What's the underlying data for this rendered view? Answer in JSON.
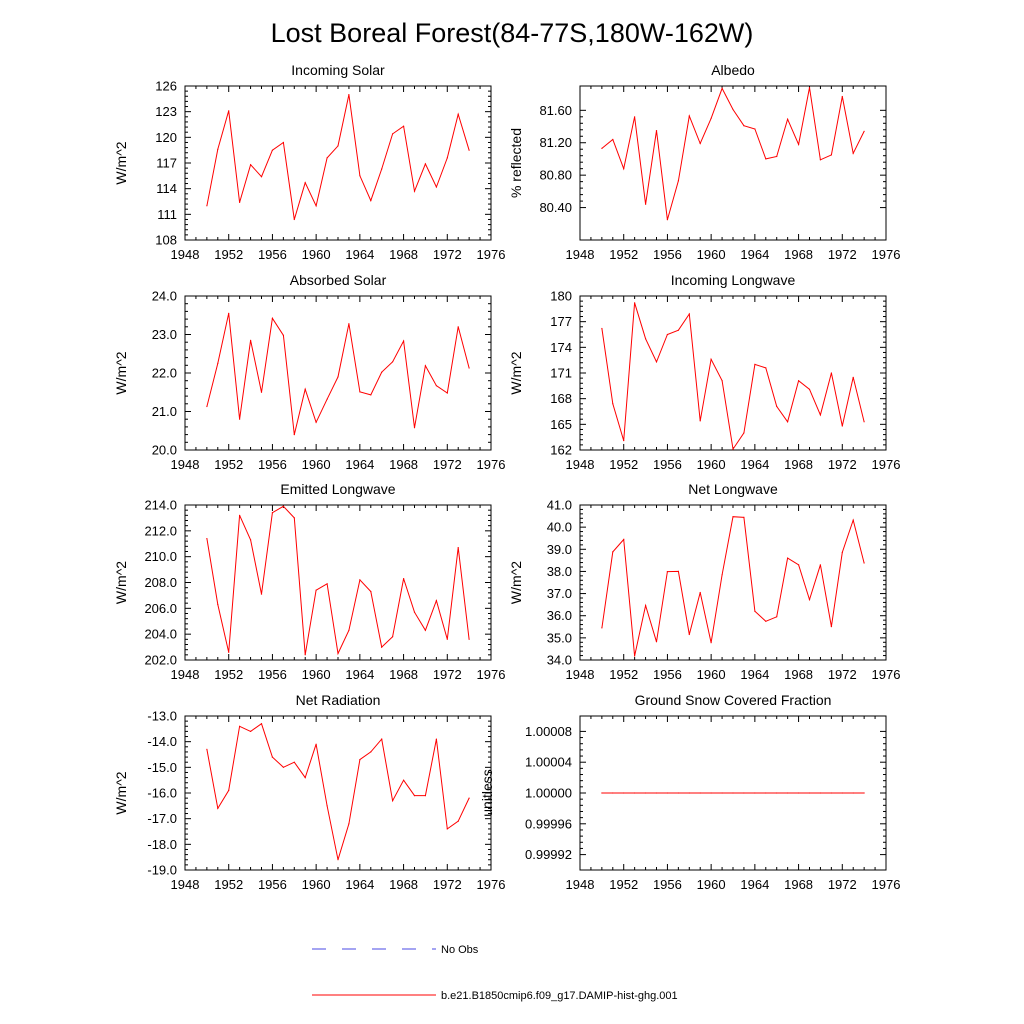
{
  "figure": {
    "title": "Lost Boreal Forest(84-77S,180W-162W)"
  },
  "colors": {
    "model": "#ff0000",
    "obs": "#4a4ae6",
    "axis": "#000000"
  },
  "legend": {
    "obs_label": "No Obs",
    "model_label": "b.e21.B1850cmip6.f09_g17.DAMIP-hist-ghg.001"
  },
  "chart_data": [
    {
      "type": "line",
      "title": "Incoming Solar",
      "ylabel": "W/m^2",
      "xlim": [
        1948,
        1976
      ],
      "xticks": [
        1948,
        1952,
        1956,
        1960,
        1964,
        1968,
        1972,
        1976
      ],
      "ylim": [
        108,
        126
      ],
      "yticks": [
        "108",
        "111",
        "114",
        "117",
        "120",
        "123",
        "126"
      ],
      "x": [
        1950,
        1951,
        1952,
        1953,
        1954,
        1955,
        1956,
        1957,
        1958,
        1959,
        1960,
        1961,
        1962,
        1963,
        1964,
        1965,
        1966,
        1967,
        1968,
        1969,
        1970,
        1971,
        1972,
        1973,
        1974
      ],
      "series": [
        {
          "values": [
            112,
            118.6,
            123.1,
            112.4,
            116.8,
            115.4,
            118.5,
            119.4,
            110.4,
            114.7,
            112,
            117.6,
            119,
            125,
            115.5,
            112.6,
            116.3,
            120.4,
            121.3,
            113.7,
            116.9,
            114.2,
            117.6,
            122.7,
            118.5
          ]
        }
      ]
    },
    {
      "type": "line",
      "title": "Albedo",
      "ylabel": "% reflected",
      "xlim": [
        1948,
        1976
      ],
      "xticks": [
        1948,
        1952,
        1956,
        1960,
        1964,
        1968,
        1972,
        1976
      ],
      "ylim": [
        80.0,
        81.9
      ],
      "yticks": [
        "80.40",
        "80.80",
        "81.20",
        "81.60"
      ],
      "ytick_values": [
        80.4,
        80.8,
        81.2,
        81.6
      ],
      "x": [
        1950,
        1951,
        1952,
        1953,
        1954,
        1955,
        1956,
        1957,
        1958,
        1959,
        1960,
        1961,
        1962,
        1963,
        1964,
        1965,
        1966,
        1967,
        1968,
        1969,
        1970,
        1971,
        1972,
        1973,
        1974
      ],
      "series": [
        {
          "values": [
            81.13,
            81.24,
            80.88,
            81.52,
            80.44,
            81.35,
            80.25,
            80.73,
            81.53,
            81.19,
            81.5,
            81.87,
            81.61,
            81.41,
            81.37,
            81.0,
            81.03,
            81.49,
            81.18,
            81.88,
            80.99,
            81.05,
            81.77,
            81.07,
            81.34
          ]
        }
      ]
    },
    {
      "type": "line",
      "title": "Absorbed Solar",
      "ylabel": "W/m^2",
      "xlim": [
        1948,
        1976
      ],
      "xticks": [
        1948,
        1952,
        1956,
        1960,
        1964,
        1968,
        1972,
        1976
      ],
      "ylim": [
        20.0,
        24.0
      ],
      "yticks": [
        "20.0",
        "21.0",
        "22.0",
        "23.0",
        "24.0"
      ],
      "x": [
        1950,
        1951,
        1952,
        1953,
        1954,
        1955,
        1956,
        1957,
        1958,
        1959,
        1960,
        1961,
        1962,
        1963,
        1964,
        1965,
        1966,
        1967,
        1968,
        1969,
        1970,
        1971,
        1972,
        1973,
        1974
      ],
      "series": [
        {
          "values": [
            21.13,
            22.25,
            23.55,
            20.8,
            22.85,
            21.5,
            23.42,
            22.98,
            20.4,
            21.58,
            20.72,
            21.32,
            21.9,
            23.28,
            21.51,
            21.43,
            22.02,
            22.29,
            22.83,
            20.58,
            22.19,
            21.67,
            21.48,
            23.2,
            22.13
          ]
        }
      ]
    },
    {
      "type": "line",
      "title": "Incoming Longwave",
      "ylabel": "W/m^2",
      "xlim": [
        1948,
        1976
      ],
      "xticks": [
        1948,
        1952,
        1956,
        1960,
        1964,
        1968,
        1972,
        1976
      ],
      "ylim": [
        162,
        180
      ],
      "yticks": [
        "162",
        "165",
        "168",
        "171",
        "174",
        "177",
        "180"
      ],
      "x": [
        1950,
        1951,
        1952,
        1953,
        1954,
        1955,
        1956,
        1957,
        1958,
        1959,
        1960,
        1961,
        1962,
        1963,
        1964,
        1965,
        1966,
        1967,
        1968,
        1969,
        1970,
        1971,
        1972,
        1973,
        1974
      ],
      "series": [
        {
          "values": [
            176.2,
            167.4,
            163.1,
            179.2,
            175,
            172.3,
            175.5,
            176,
            177.9,
            165.4,
            172.6,
            170.1,
            162.1,
            164,
            172,
            171.6,
            167.1,
            165.3,
            170.1,
            169.1,
            166.1,
            171,
            164.8,
            170.5,
            165.3
          ]
        }
      ]
    },
    {
      "type": "line",
      "title": "Emitted Longwave",
      "ylabel": "W/m^2",
      "xlim": [
        1948,
        1976
      ],
      "xticks": [
        1948,
        1952,
        1956,
        1960,
        1964,
        1968,
        1972,
        1976
      ],
      "ylim": [
        202.0,
        214.0
      ],
      "yticks": [
        "202.0",
        "204.0",
        "206.0",
        "208.0",
        "210.0",
        "212.0",
        "214.0"
      ],
      "x": [
        1950,
        1951,
        1952,
        1953,
        1954,
        1955,
        1956,
        1957,
        1958,
        1959,
        1960,
        1961,
        1962,
        1963,
        1964,
        1965,
        1966,
        1967,
        1968,
        1969,
        1970,
        1971,
        1972,
        1973,
        1974
      ],
      "series": [
        {
          "values": [
            211.4,
            206.3,
            202.6,
            213.2,
            211.3,
            207.1,
            213.4,
            213.9,
            213,
            202.4,
            207.4,
            207.9,
            202.5,
            204.3,
            208.2,
            207.3,
            203,
            203.8,
            208.3,
            205.7,
            204.3,
            206.6,
            203.6,
            210.7,
            203.6
          ]
        }
      ]
    },
    {
      "type": "line",
      "title": "Net Longwave",
      "ylabel": "W/m^2",
      "xlim": [
        1948,
        1976
      ],
      "xticks": [
        1948,
        1952,
        1956,
        1960,
        1964,
        1968,
        1972,
        1976
      ],
      "ylim": [
        34.0,
        41.0
      ],
      "yticks": [
        "34.0",
        "35.0",
        "36.0",
        "37.0",
        "38.0",
        "39.0",
        "40.0",
        "41.0"
      ],
      "x": [
        1950,
        1951,
        1952,
        1953,
        1954,
        1955,
        1956,
        1957,
        1958,
        1959,
        1960,
        1961,
        1962,
        1963,
        1964,
        1965,
        1966,
        1967,
        1968,
        1969,
        1970,
        1971,
        1972,
        1973,
        1974
      ],
      "series": [
        {
          "values": [
            35.45,
            38.88,
            39.44,
            34.18,
            36.46,
            34.82,
            37.99,
            38,
            35.15,
            37.05,
            34.78,
            37.85,
            40.47,
            40.44,
            36.2,
            35.75,
            35.95,
            38.6,
            38.3,
            36.73,
            38.3,
            35.51,
            38.86,
            40.32,
            38.38
          ]
        }
      ]
    },
    {
      "type": "line",
      "title": "Net Radiation",
      "ylabel": "W/m^2",
      "xlim": [
        1948,
        1976
      ],
      "xticks": [
        1948,
        1952,
        1956,
        1960,
        1964,
        1968,
        1972,
        1976
      ],
      "ylim": [
        -19.0,
        -13.0
      ],
      "yticks": [
        "-19.0",
        "-18.0",
        "-17.0",
        "-16.0",
        "-15.0",
        "-14.0",
        "-13.0"
      ],
      "x": [
        1950,
        1951,
        1952,
        1953,
        1954,
        1955,
        1956,
        1957,
        1958,
        1959,
        1960,
        1961,
        1962,
        1963,
        1964,
        1965,
        1966,
        1967,
        1968,
        1969,
        1970,
        1971,
        1972,
        1973,
        1974
      ],
      "series": [
        {
          "values": [
            -14.3,
            -16.6,
            -15.9,
            -13.4,
            -13.6,
            -13.3,
            -14.6,
            -15,
            -14.8,
            -15.4,
            -14.1,
            -16.5,
            -18.6,
            -17.2,
            -14.7,
            -14.4,
            -13.9,
            -16.3,
            -15.5,
            -16.1,
            -16.1,
            -13.9,
            -17.4,
            -17.1,
            -16.2
          ]
        }
      ]
    },
    {
      "type": "line",
      "title": "Ground Snow Covered Fraction",
      "ylabel": "unitless",
      "xlim": [
        1948,
        1976
      ],
      "xticks": [
        1948,
        1952,
        1956,
        1960,
        1964,
        1968,
        1972,
        1976
      ],
      "ylim": [
        0.9999,
        1.0001
      ],
      "yticks": [
        "0.99992",
        "0.99996",
        "1.00000",
        "1.00004",
        "1.00008"
      ],
      "ytick_values": [
        0.99992,
        0.99996,
        1.0,
        1.00004,
        1.00008
      ],
      "x": [
        1950,
        1951,
        1952,
        1953,
        1954,
        1955,
        1956,
        1957,
        1958,
        1959,
        1960,
        1961,
        1962,
        1963,
        1964,
        1965,
        1966,
        1967,
        1968,
        1969,
        1970,
        1971,
        1972,
        1973,
        1974
      ],
      "series": [
        {
          "values": [
            1,
            1,
            1,
            1,
            1,
            1,
            1,
            1,
            1,
            1,
            1,
            1,
            1,
            1,
            1,
            1,
            1,
            1,
            1,
            1,
            1,
            1,
            1,
            1,
            1
          ]
        }
      ]
    }
  ]
}
